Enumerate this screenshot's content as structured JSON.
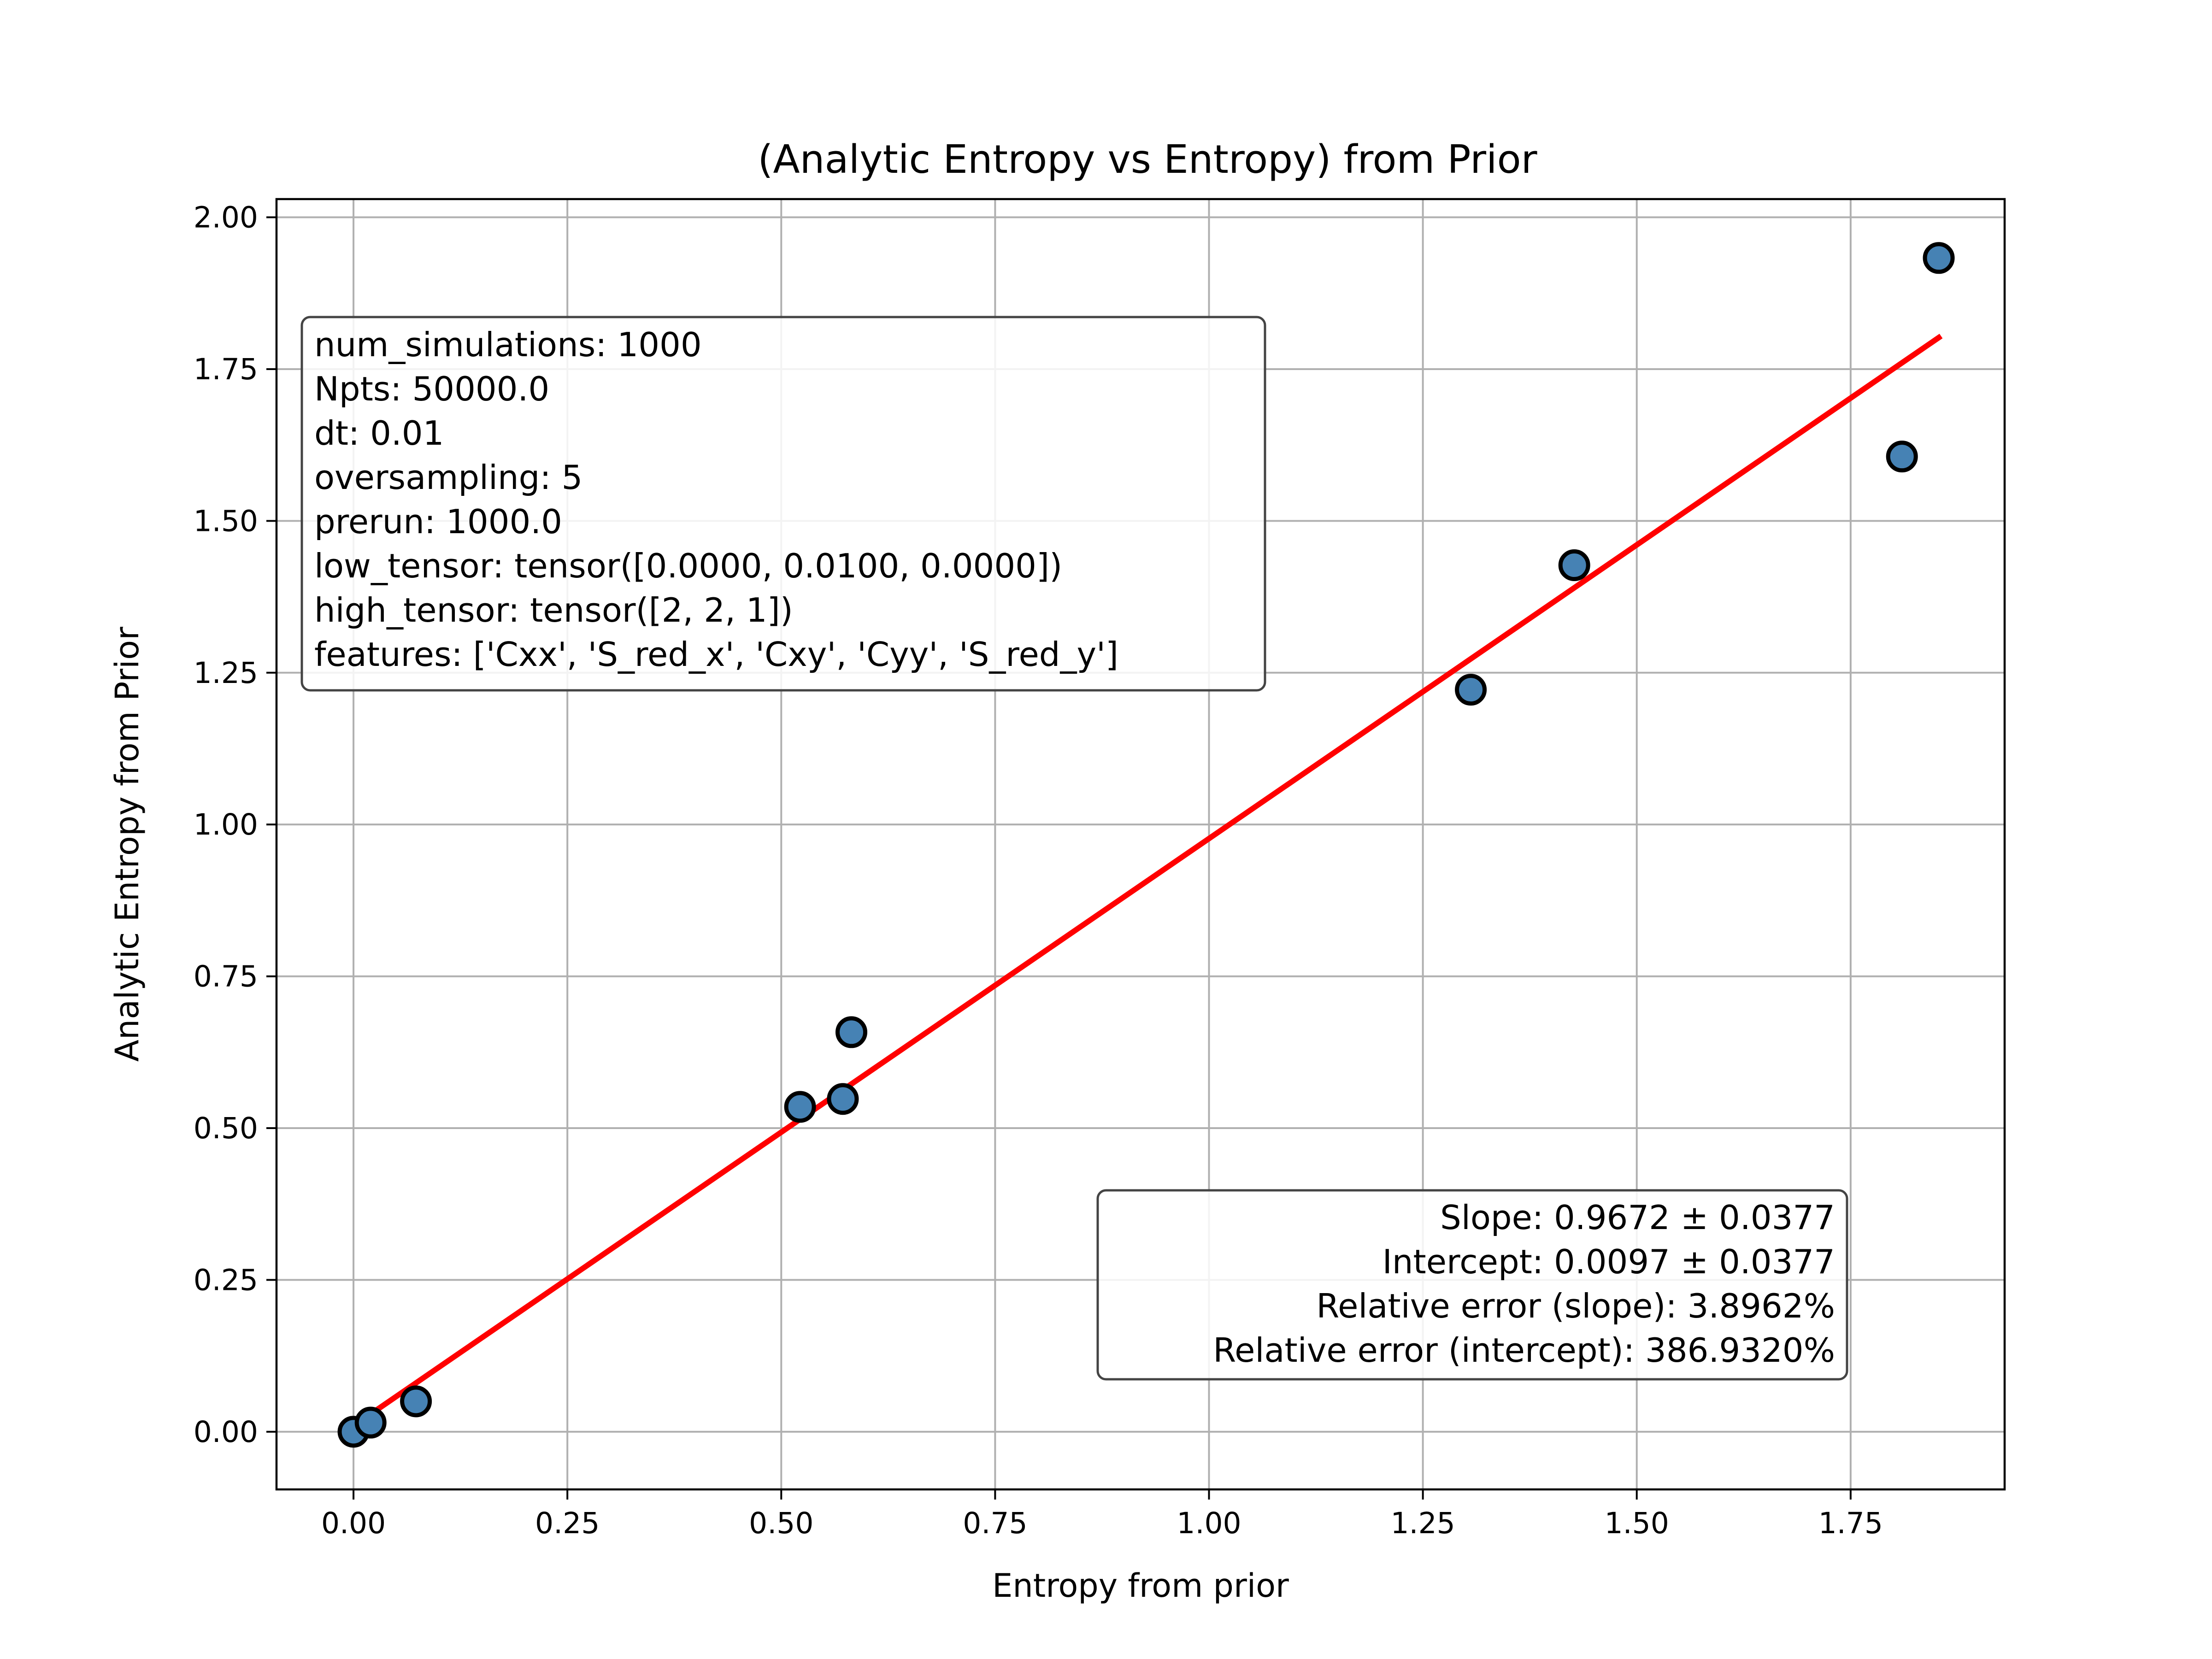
{
  "chart_data": {
    "type": "scatter",
    "title": "(Analytic Entropy vs Entropy) from Prior",
    "xlabel": "Entropy from prior",
    "ylabel": "Analytic Entropy from Prior",
    "xlim": [
      -0.09,
      1.93
    ],
    "ylim": [
      -0.095,
      2.03
    ],
    "xticks": [
      0.0,
      0.25,
      0.5,
      0.75,
      1.0,
      1.25,
      1.5,
      1.75
    ],
    "xtick_labels": [
      "0.00",
      "0.25",
      "0.50",
      "0.75",
      "1.00",
      "1.25",
      "1.50",
      "1.75"
    ],
    "yticks": [
      0.0,
      0.25,
      0.5,
      0.75,
      1.0,
      1.25,
      1.5,
      1.75,
      2.0
    ],
    "ytick_labels": [
      "0.00",
      "0.25",
      "0.50",
      "0.75",
      "1.00",
      "1.25",
      "1.50",
      "1.75",
      "2.00"
    ],
    "grid": true,
    "series": [
      {
        "kind": "scatter",
        "color": "#4682b4",
        "edgecolor": "#000000",
        "x": [
          0.0,
          0.02,
          0.073,
          0.522,
          0.572,
          0.582,
          1.306,
          1.427,
          1.81,
          1.853
        ],
        "y": [
          0.0,
          0.015,
          0.05,
          0.535,
          0.548,
          0.658,
          1.222,
          1.427,
          1.606,
          1.933
        ]
      },
      {
        "kind": "line",
        "color": "#ff0000",
        "x": [
          0.0,
          1.853
        ],
        "y": [
          0.0097,
          1.8019
        ]
      }
    ],
    "annotations": {
      "params_box": [
        "num_simulations: 1000",
        "Npts: 50000.0",
        "dt: 0.01",
        "oversampling: 5",
        "prerun: 1000.0",
        "low_tensor: tensor([0.0000, 0.0100, 0.0000])",
        "high_tensor: tensor([2, 2, 1])",
        "features: ['Cxx', 'S_red_x', 'Cxy', 'Cyy', 'S_red_y']"
      ],
      "fit_box": [
        "Slope: 0.9672 ± 0.0377",
        "Intercept: 0.0097 ± 0.0377",
        "Relative error (slope): 3.8962%",
        "Relative error (intercept): 386.9320%"
      ]
    }
  }
}
